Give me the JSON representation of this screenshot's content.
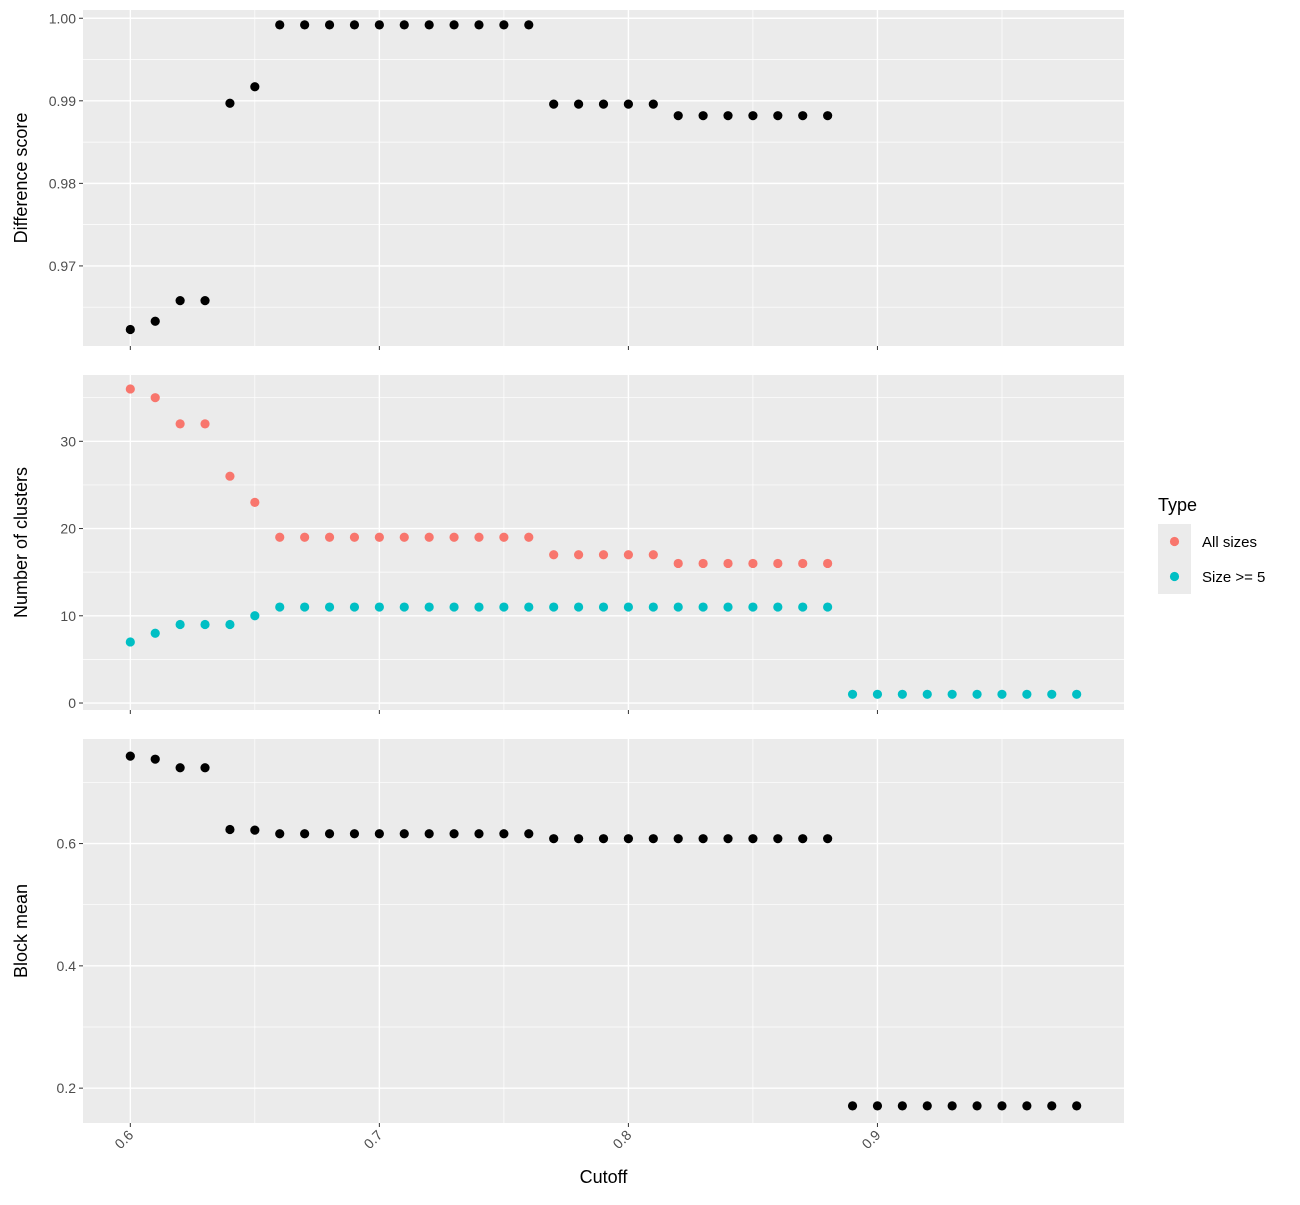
{
  "chart_data": [
    {
      "type": "scatter",
      "ylabel": "Difference score",
      "ylim": [
        0.9603,
        1.001
      ],
      "yticks": [
        0.97,
        0.98,
        0.99,
        1.0
      ],
      "ytick_labels": [
        "0.97",
        "0.98",
        "0.99",
        "1.00"
      ],
      "series": [
        {
          "color": "#000000",
          "x": [
            0.6,
            0.61,
            0.62,
            0.63,
            0.64,
            0.65,
            0.66,
            0.67,
            0.68,
            0.69,
            0.7,
            0.71,
            0.72,
            0.73,
            0.74,
            0.75,
            0.76,
            0.77,
            0.78,
            0.79,
            0.8,
            0.81,
            0.82,
            0.83,
            0.84,
            0.85,
            0.86,
            0.87,
            0.88
          ],
          "y": [
            0.9623,
            0.9633,
            0.9658,
            0.9658,
            0.9897,
            0.9917,
            0.9992,
            0.9992,
            0.9992,
            0.9992,
            0.9992,
            0.9992,
            0.9992,
            0.9992,
            0.9992,
            0.9992,
            0.9992,
            0.9896,
            0.9896,
            0.9896,
            0.9896,
            0.9896,
            0.9882,
            0.9882,
            0.9882,
            0.9882,
            0.9882,
            0.9882,
            0.9882
          ]
        }
      ]
    },
    {
      "type": "scatter",
      "ylabel": "Number of clusters",
      "ylim": [
        -0.8,
        37.6
      ],
      "yticks": [
        0,
        10,
        20,
        30
      ],
      "ytick_labels": [
        "0",
        "10",
        "20",
        "30"
      ],
      "series": [
        {
          "name": "All sizes",
          "color": "#F8766D",
          "x": [
            0.6,
            0.61,
            0.62,
            0.63,
            0.64,
            0.65,
            0.66,
            0.67,
            0.68,
            0.69,
            0.7,
            0.71,
            0.72,
            0.73,
            0.74,
            0.75,
            0.76,
            0.77,
            0.78,
            0.79,
            0.8,
            0.81,
            0.82,
            0.83,
            0.84,
            0.85,
            0.86,
            0.87,
            0.88
          ],
          "y": [
            36,
            35,
            32,
            32,
            26,
            23,
            19,
            19,
            19,
            19,
            19,
            19,
            19,
            19,
            19,
            19,
            19,
            17,
            17,
            17,
            17,
            17,
            16,
            16,
            16,
            16,
            16,
            16,
            16
          ]
        },
        {
          "name": "Size >= 5",
          "color": "#00BFC4",
          "x": [
            0.6,
            0.61,
            0.62,
            0.63,
            0.64,
            0.65,
            0.66,
            0.67,
            0.68,
            0.69,
            0.7,
            0.71,
            0.72,
            0.73,
            0.74,
            0.75,
            0.76,
            0.77,
            0.78,
            0.79,
            0.8,
            0.81,
            0.82,
            0.83,
            0.84,
            0.85,
            0.86,
            0.87,
            0.88,
            0.89,
            0.9,
            0.91,
            0.92,
            0.93,
            0.94,
            0.95,
            0.96,
            0.97,
            0.98
          ],
          "y": [
            7,
            8,
            9,
            9,
            9,
            10,
            11,
            11,
            11,
            11,
            11,
            11,
            11,
            11,
            11,
            11,
            11,
            11,
            11,
            11,
            11,
            11,
            11,
            11,
            11,
            11,
            11,
            11,
            11,
            1,
            1,
            1,
            1,
            1,
            1,
            1,
            1,
            1,
            1
          ]
        }
      ]
    },
    {
      "type": "scatter",
      "ylabel": "Block mean",
      "ylim": [
        0.143,
        0.771
      ],
      "yticks": [
        0.2,
        0.4,
        0.6
      ],
      "ytick_labels": [
        "0.2",
        "0.4",
        "0.6"
      ],
      "series": [
        {
          "color": "#000000",
          "x": [
            0.6,
            0.61,
            0.62,
            0.63,
            0.64,
            0.65,
            0.66,
            0.67,
            0.68,
            0.69,
            0.7,
            0.71,
            0.72,
            0.73,
            0.74,
            0.75,
            0.76,
            0.77,
            0.78,
            0.79,
            0.8,
            0.81,
            0.82,
            0.83,
            0.84,
            0.85,
            0.86,
            0.87,
            0.88,
            0.89,
            0.9,
            0.91,
            0.92,
            0.93,
            0.94,
            0.95,
            0.96,
            0.97,
            0.98
          ],
          "y": [
            0.743,
            0.738,
            0.724,
            0.724,
            0.623,
            0.622,
            0.616,
            0.616,
            0.616,
            0.616,
            0.616,
            0.616,
            0.616,
            0.616,
            0.616,
            0.616,
            0.616,
            0.608,
            0.608,
            0.608,
            0.608,
            0.608,
            0.608,
            0.608,
            0.608,
            0.608,
            0.608,
            0.608,
            0.608,
            0.171,
            0.171,
            0.171,
            0.171,
            0.171,
            0.171,
            0.171,
            0.171,
            0.171,
            0.171
          ]
        }
      ]
    }
  ],
  "shared_x": {
    "xlabel": "Cutoff",
    "xlim": [
      0.581,
      0.999
    ],
    "xticks": [
      0.6,
      0.7,
      0.8,
      0.9
    ],
    "xtick_labels": [
      "0.6",
      "0.7",
      "0.8",
      "0.9"
    ],
    "minor_xticks": [
      0.65,
      0.75,
      0.85,
      0.95
    ]
  },
  "legend": {
    "title": "Type",
    "placement": "right",
    "entries": [
      {
        "label": "All sizes",
        "color": "#F8766D"
      },
      {
        "label": "Size >= 5",
        "color": "#00BFC4"
      }
    ]
  },
  "theme": {
    "panel_background": "#EBEBEB",
    "grid_color": "#FFFFFF",
    "axis_text_color": "#4D4D4D",
    "title_color": "#000000"
  }
}
